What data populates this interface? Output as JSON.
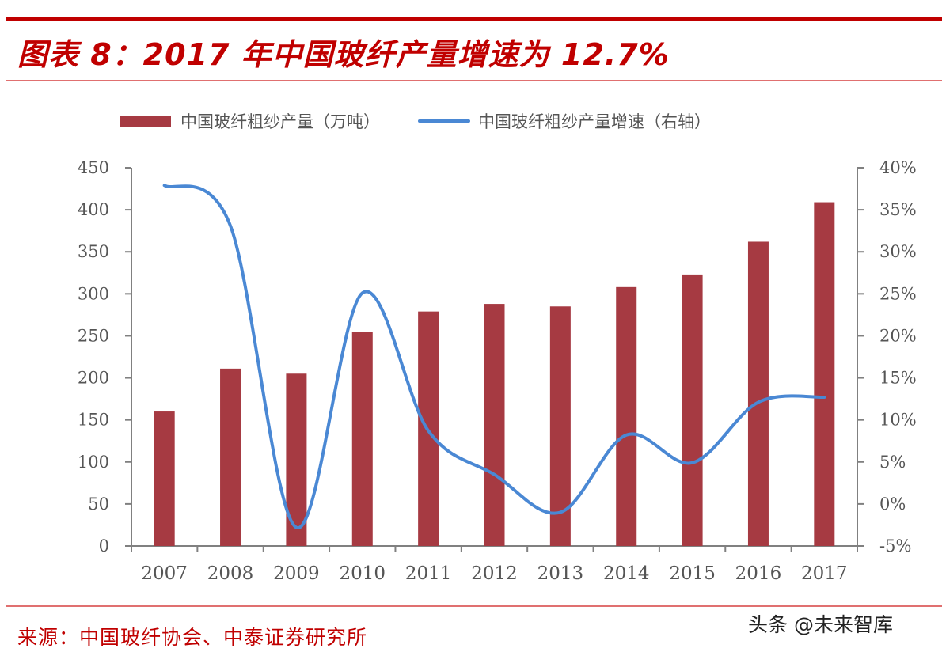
{
  "header": {
    "title": "图表 8：2017 年中国玻纤产量增速为 12.7%"
  },
  "legend": {
    "bar_label": "中国玻纤粗纱产量（万吨）",
    "line_label": "中国玻纤粗纱产量增速（右轴）"
  },
  "footer": {
    "source": "来源：中国玻纤协会、中泰证券研究所",
    "watermark": "头条 @未来智库"
  },
  "colors": {
    "accent": "#c00000",
    "bar": "#a63a42",
    "line": "#4a88d4",
    "axis": "#808080"
  },
  "chart_data": {
    "type": "bar+line",
    "title": "2017 年中国玻纤产量增速为 12.7%",
    "categories": [
      "2007",
      "2008",
      "2009",
      "2010",
      "2011",
      "2012",
      "2013",
      "2014",
      "2015",
      "2016",
      "2017"
    ],
    "series": [
      {
        "name": "中国玻纤粗纱产量（万吨）",
        "type": "bar",
        "axis": "left",
        "values": [
          160,
          211,
          205,
          255,
          279,
          288,
          285,
          308,
          323,
          362,
          409
        ]
      },
      {
        "name": "中国玻纤粗纱产量增速（右轴）",
        "type": "line",
        "axis": "right",
        "values": [
          37.9,
          33.1,
          -2.8,
          25.1,
          8.7,
          3.5,
          -1.0,
          8.2,
          4.9,
          12.1,
          12.7
        ]
      }
    ],
    "left_axis": {
      "ticks": [
        "0",
        "50",
        "100",
        "150",
        "200",
        "250",
        "300",
        "350",
        "400",
        "450"
      ],
      "ylim": [
        0,
        450
      ]
    },
    "right_axis": {
      "ticks": [
        "-5%",
        "0%",
        "5%",
        "10%",
        "15%",
        "20%",
        "25%",
        "30%",
        "35%",
        "40%"
      ],
      "ylim": [
        -5,
        40
      ]
    },
    "xlabel": "",
    "ylabel": "",
    "legend_position": "top",
    "grid": false
  }
}
